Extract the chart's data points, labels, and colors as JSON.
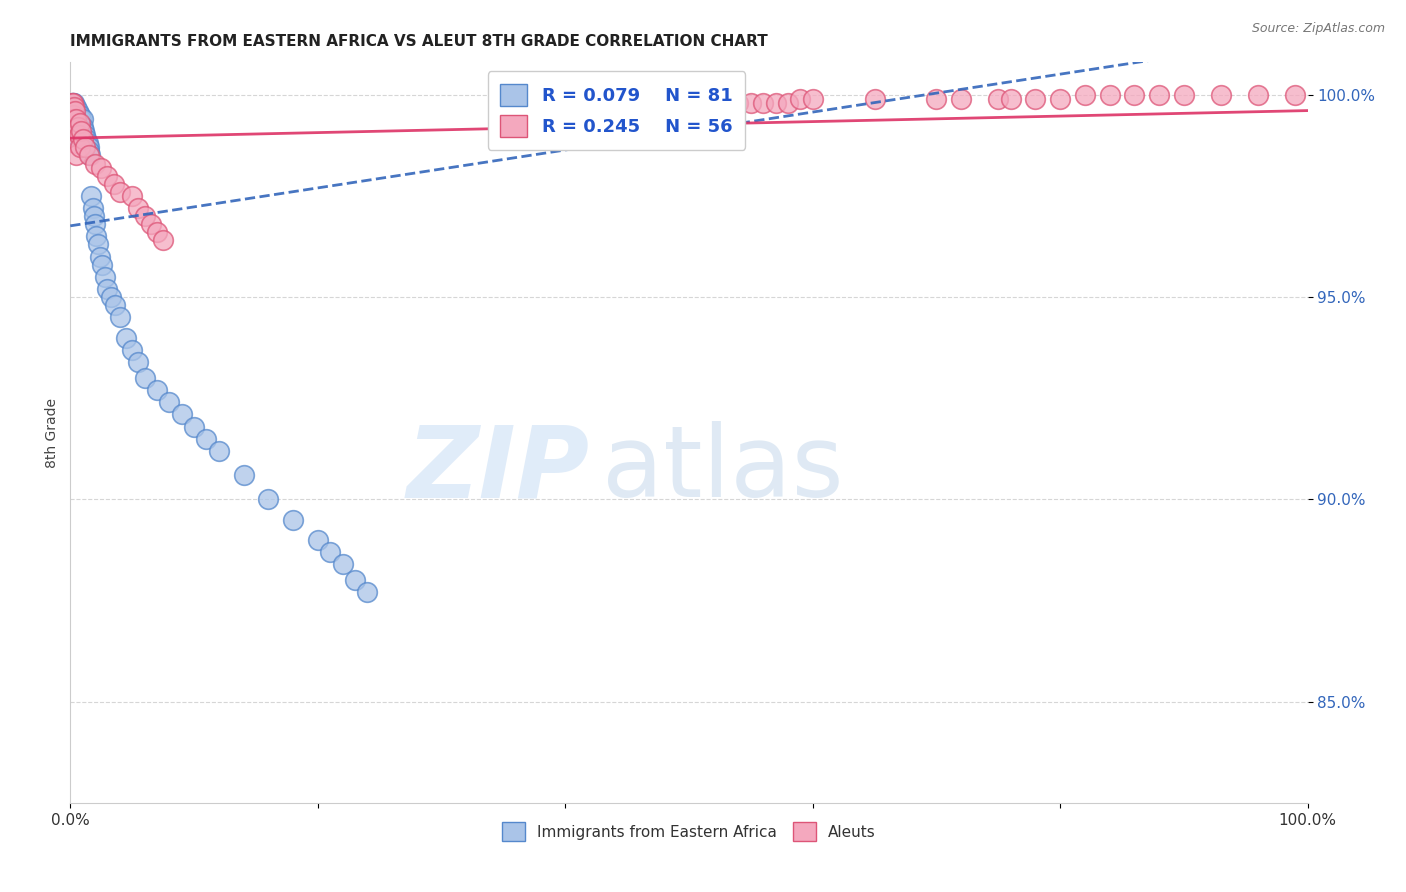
{
  "title": "IMMIGRANTS FROM EASTERN AFRICA VS ALEUT 8TH GRADE CORRELATION CHART",
  "source": "Source: ZipAtlas.com",
  "ylabel": "8th Grade",
  "legend_label_blue": "Immigrants from Eastern Africa",
  "legend_label_pink": "Aleuts",
  "blue_color": "#aac4e8",
  "pink_color": "#f4a8be",
  "blue_edge": "#5588cc",
  "pink_edge": "#dd5577",
  "blue_line_color": "#3366bb",
  "pink_line_color": "#dd3366",
  "blue_R": 0.079,
  "blue_N": 81,
  "pink_R": 0.245,
  "pink_N": 56,
  "xlim": [
    0.0,
    1.0
  ],
  "ylim": [
    0.825,
    1.008
  ],
  "yticks": [
    0.85,
    0.9,
    0.95,
    1.0
  ],
  "ytick_labels": [
    "85.0%",
    "90.0%",
    "95.0%",
    "100.0%"
  ],
  "blue_x": [
    0.001,
    0.001,
    0.001,
    0.001,
    0.001,
    0.001,
    0.001,
    0.001,
    0.002,
    0.002,
    0.002,
    0.002,
    0.002,
    0.002,
    0.002,
    0.003,
    0.003,
    0.003,
    0.003,
    0.003,
    0.003,
    0.004,
    0.004,
    0.004,
    0.004,
    0.004,
    0.005,
    0.005,
    0.005,
    0.005,
    0.006,
    0.006,
    0.006,
    0.007,
    0.007,
    0.007,
    0.008,
    0.008,
    0.009,
    0.009,
    0.01,
    0.01,
    0.011,
    0.012,
    0.012,
    0.013,
    0.014,
    0.015,
    0.015,
    0.016,
    0.017,
    0.018,
    0.019,
    0.02,
    0.021,
    0.022,
    0.024,
    0.026,
    0.028,
    0.03,
    0.033,
    0.036,
    0.04,
    0.045,
    0.05,
    0.055,
    0.06,
    0.07,
    0.08,
    0.09,
    0.1,
    0.11,
    0.12,
    0.14,
    0.16,
    0.18,
    0.2,
    0.21,
    0.22,
    0.23,
    0.24
  ],
  "blue_y": [
    0.998,
    0.997,
    0.996,
    0.995,
    0.994,
    0.993,
    0.992,
    0.991,
    0.998,
    0.997,
    0.996,
    0.995,
    0.994,
    0.993,
    0.992,
    0.998,
    0.997,
    0.996,
    0.994,
    0.992,
    0.99,
    0.997,
    0.996,
    0.994,
    0.992,
    0.99,
    0.997,
    0.995,
    0.993,
    0.991,
    0.996,
    0.994,
    0.992,
    0.995,
    0.993,
    0.991,
    0.995,
    0.993,
    0.994,
    0.992,
    0.994,
    0.992,
    0.991,
    0.99,
    0.988,
    0.989,
    0.988,
    0.987,
    0.986,
    0.985,
    0.975,
    0.972,
    0.97,
    0.968,
    0.965,
    0.963,
    0.96,
    0.958,
    0.955,
    0.952,
    0.95,
    0.948,
    0.945,
    0.94,
    0.937,
    0.934,
    0.93,
    0.927,
    0.924,
    0.921,
    0.918,
    0.915,
    0.912,
    0.906,
    0.9,
    0.895,
    0.89,
    0.887,
    0.884,
    0.88,
    0.877
  ],
  "pink_x": [
    0.001,
    0.001,
    0.002,
    0.002,
    0.003,
    0.003,
    0.003,
    0.004,
    0.004,
    0.005,
    0.005,
    0.006,
    0.007,
    0.008,
    0.008,
    0.009,
    0.01,
    0.012,
    0.015,
    0.02,
    0.025,
    0.03,
    0.035,
    0.04,
    0.05,
    0.055,
    0.06,
    0.065,
    0.07,
    0.075,
    0.5,
    0.51,
    0.52,
    0.53,
    0.54,
    0.55,
    0.56,
    0.57,
    0.58,
    0.59,
    0.6,
    0.65,
    0.7,
    0.72,
    0.75,
    0.76,
    0.78,
    0.8,
    0.82,
    0.84,
    0.86,
    0.88,
    0.9,
    0.93,
    0.96,
    0.99
  ],
  "pink_y": [
    0.998,
    0.996,
    0.998,
    0.995,
    0.997,
    0.994,
    0.991,
    0.996,
    0.988,
    0.994,
    0.985,
    0.992,
    0.99,
    0.993,
    0.987,
    0.991,
    0.989,
    0.987,
    0.985,
    0.983,
    0.982,
    0.98,
    0.978,
    0.976,
    0.975,
    0.972,
    0.97,
    0.968,
    0.966,
    0.964,
    0.996,
    0.997,
    0.998,
    0.998,
    0.998,
    0.998,
    0.998,
    0.998,
    0.998,
    0.999,
    0.999,
    0.999,
    0.999,
    0.999,
    0.999,
    0.999,
    0.999,
    0.999,
    1.0,
    1.0,
    1.0,
    1.0,
    1.0,
    1.0,
    1.0,
    1.0
  ]
}
